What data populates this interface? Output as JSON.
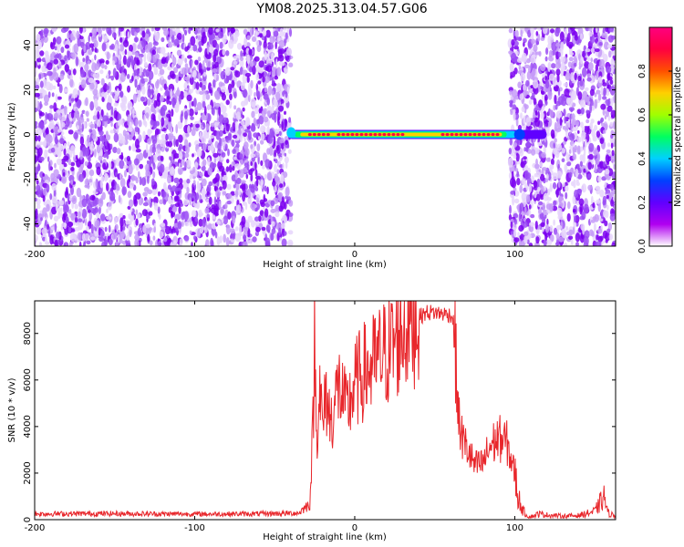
{
  "title": "YM08.2025.313.04.57.G06",
  "colors": {
    "snr_line": "#e8262b",
    "scatter_palette": [
      "#7b00f0",
      "#9b4df5",
      "#c59bf8",
      "#e6d5fb"
    ]
  },
  "chart_data": [
    {
      "type": "heatmap",
      "title": "YM08.2025.313.04.57.G06",
      "xlabel": "Height of straight line (km)",
      "ylabel": "Frequency (Hz)",
      "xlim": [
        -200,
        163
      ],
      "ylim": [
        -50,
        48
      ],
      "xticks": [
        -200,
        -100,
        0,
        100
      ],
      "yticks": [
        40,
        20,
        0,
        -20,
        -40
      ],
      "grid": false,
      "noise_regions_km": [
        [
          -200,
          -40
        ],
        [
          97,
          163
        ]
      ],
      "signal_band": {
        "x_start": -42,
        "x_end": 120,
        "frequency_hz": 0,
        "peak_segments_km": [
          [
            -28,
            -15
          ],
          [
            -10,
            30
          ],
          [
            55,
            90
          ]
        ]
      },
      "colorbar": {
        "label": "Normalized spectral amplitude",
        "range": [
          0.0,
          1.0
        ],
        "ticks": [
          0.0,
          0.2,
          0.4,
          0.6,
          0.8
        ],
        "colormap": [
          "#ffffff",
          "#b000f0",
          "#6000ff",
          "#0040ff",
          "#00d0ff",
          "#00ff60",
          "#a0ff00",
          "#ffd000",
          "#ff5000",
          "#ff0040",
          "#ff007f"
        ]
      }
    },
    {
      "type": "line",
      "xlabel": "Height of straight line (km)",
      "ylabel": "SNR (10 * v/v)",
      "xlim": [
        -200,
        163
      ],
      "ylim": [
        0,
        9400
      ],
      "xticks": [
        -200,
        -100,
        0,
        100
      ],
      "yticks": [
        0,
        2000,
        4000,
        6000,
        8000
      ],
      "grid": false,
      "series": [
        {
          "x": [
            -200,
            -150,
            -100,
            -60,
            -35,
            -28,
            -26,
            -25,
            -24,
            -22,
            -20,
            -18,
            -15,
            -10,
            -5,
            0,
            5,
            10,
            15,
            20,
            25,
            30,
            35,
            40,
            45,
            50,
            55,
            60,
            62,
            63,
            64,
            65,
            68,
            70,
            75,
            80,
            85,
            90,
            95,
            100,
            102,
            105,
            108,
            110,
            115,
            120,
            130,
            140,
            150,
            155,
            156,
            158,
            163
          ],
          "y": [
            250,
            260,
            240,
            250,
            280,
            700,
            4200,
            8400,
            3200,
            6000,
            3800,
            5400,
            4200,
            5800,
            4600,
            5800,
            6300,
            6500,
            6900,
            7200,
            7600,
            8200,
            8500,
            8700,
            8900,
            8900,
            8850,
            8800,
            8500,
            7000,
            5500,
            4200,
            3300,
            3100,
            2300,
            2400,
            3200,
            3500,
            3300,
            2000,
            1000,
            400,
            150,
            120,
            250,
            200,
            150,
            180,
            350,
            900,
            1000,
            300,
            150
          ]
        }
      ]
    }
  ]
}
